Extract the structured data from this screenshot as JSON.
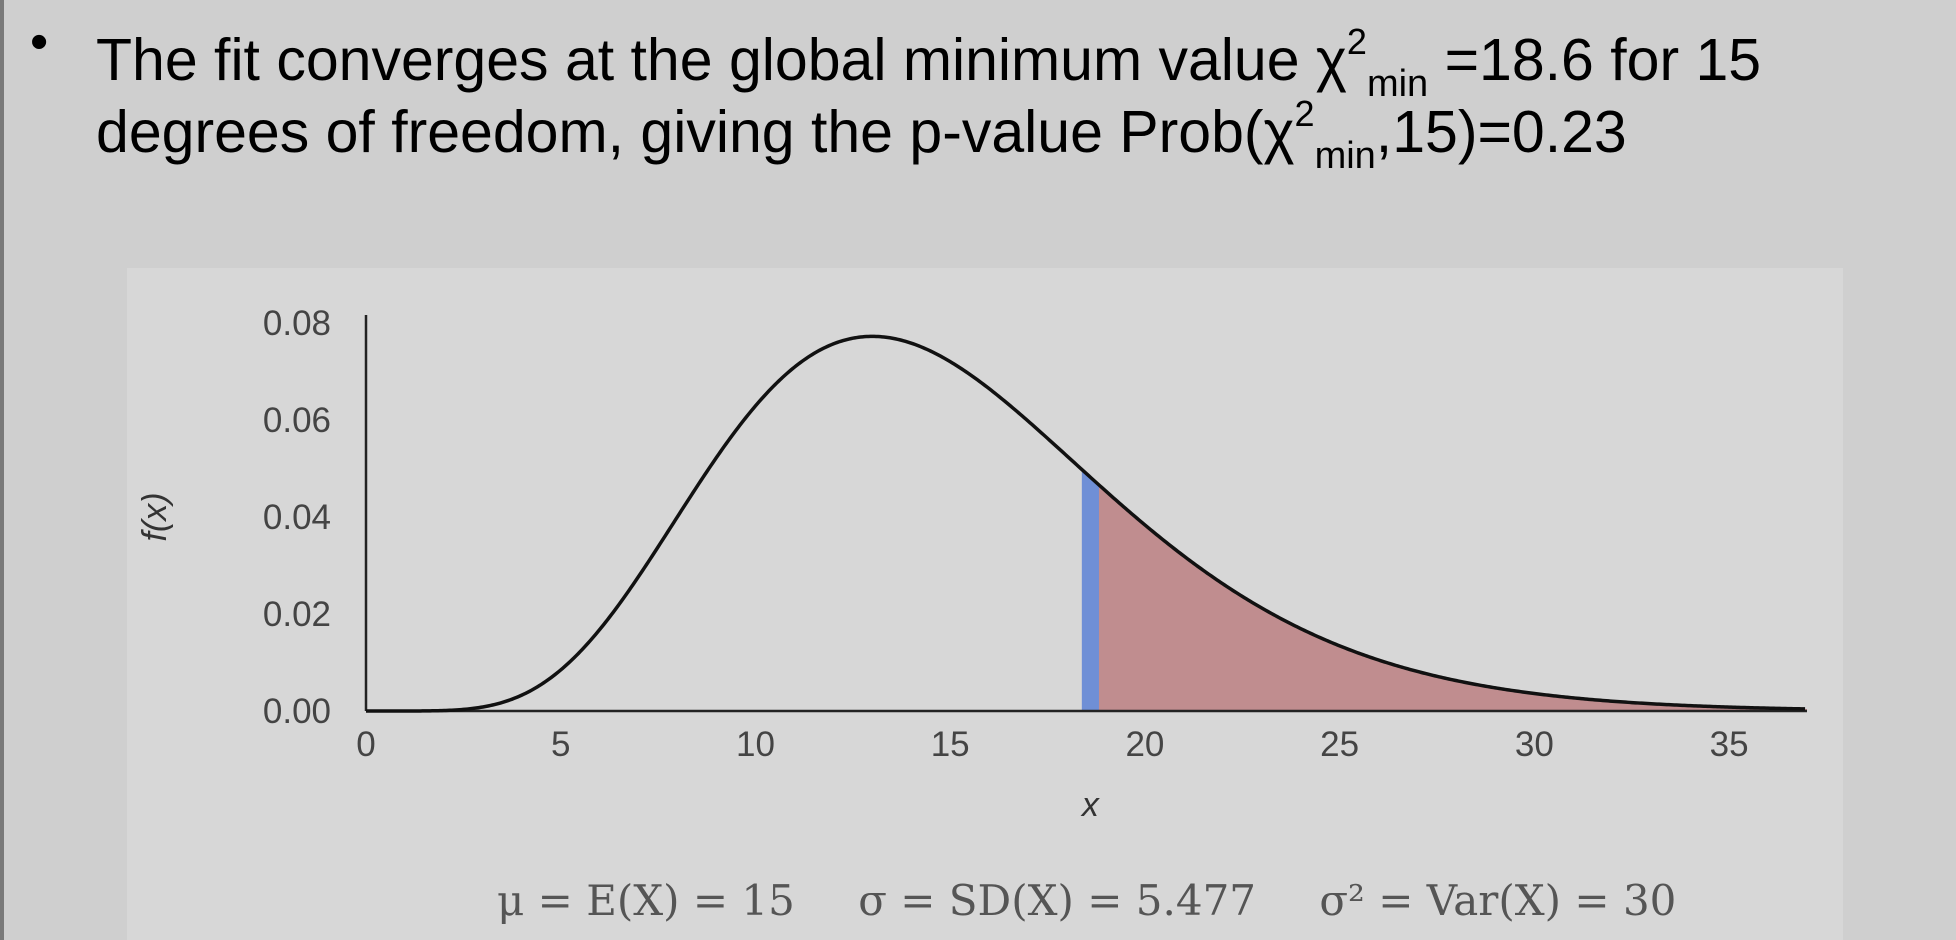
{
  "bullet": {
    "symbol": "•",
    "line1_pre": "The fit converges at the global minimum value χ",
    "line1_sup": "2",
    "line1_sub": "min",
    "line1_post": " =18.6 for 15",
    "line2_pre": "degrees of freedom, giving the p-value Prob(χ",
    "line2_sup": "2",
    "line2_sub": "min",
    "line2_post": ",15)=0.23"
  },
  "chart_data": {
    "type": "area",
    "distribution": "chi-squared",
    "degrees_of_freedom": 15,
    "xlabel": "x",
    "ylabel": "f(x)",
    "xlim": [
      0,
      37
    ],
    "ylim": [
      0,
      0.08
    ],
    "x_ticks": [
      "0",
      "5",
      "10",
      "15",
      "20",
      "25",
      "30",
      "35"
    ],
    "y_ticks": [
      "0.00",
      "0.02",
      "0.04",
      "0.06",
      "0.08"
    ],
    "observed_x": 18.6,
    "shaded_region": [
      18.6,
      37
    ],
    "colors": {
      "curve": "#111111",
      "marker": "#6f8fd6",
      "shade": "#c08d8f",
      "axis": "#222222"
    }
  },
  "stats": {
    "mean": "μ = E(X) = 15",
    "sd": "σ = SD(X) = 5.477",
    "var": "σ² = Var(X) = 30"
  }
}
